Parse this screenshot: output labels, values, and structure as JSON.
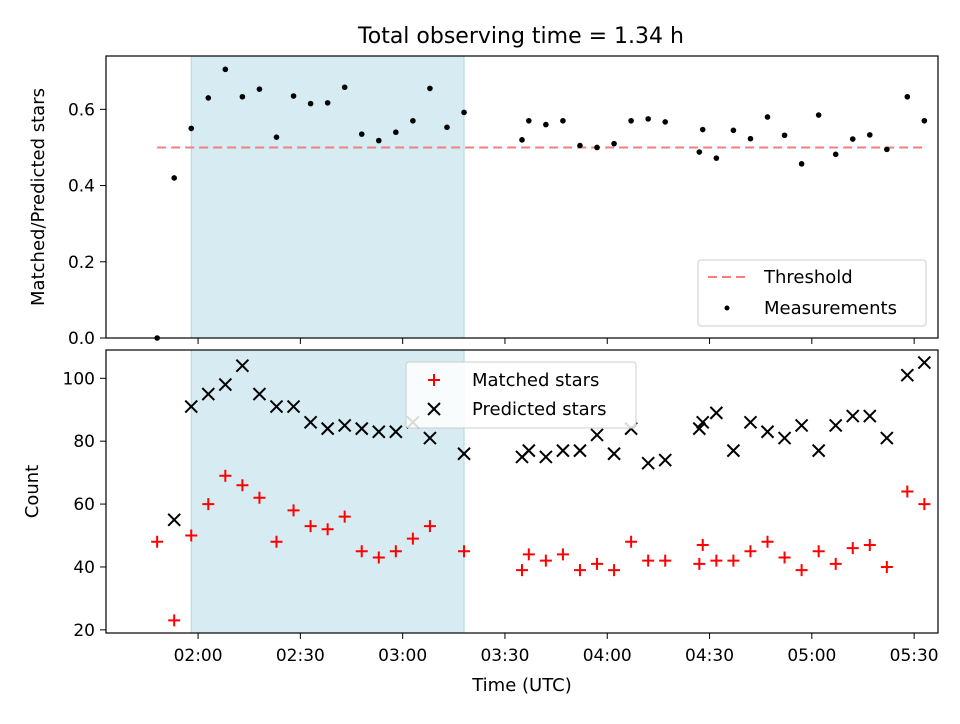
{
  "title": "Total observing time = 1.34 h",
  "colors": {
    "threshold": "#f08080",
    "measurement": "#000000",
    "matched": "#ff0000",
    "predicted": "#000000",
    "highlight": "#add8e6"
  },
  "chart_data": [
    {
      "type": "scatter",
      "ylabel": "Matched/Predicted stars",
      "ylim": [
        0,
        0.74
      ],
      "xlim": [
        "01:33",
        "05:37"
      ],
      "yticks": [
        "0.0",
        "0.2",
        "0.4",
        "0.6"
      ],
      "ytick_values": [
        0,
        0.2,
        0.4,
        0.6
      ],
      "highlight": {
        "x_start": "01:58",
        "x_end": "03:18"
      },
      "legend_position": "lower right",
      "threshold": {
        "name": "Threshold",
        "value": 0.5,
        "x_start": "01:48",
        "x_end": "05:33"
      },
      "series": [
        {
          "name": "Measurements",
          "x": [
            "01:48",
            "01:53",
            "01:58",
            "02:03",
            "02:08",
            "02:13",
            "02:18",
            "02:23",
            "02:28",
            "02:33",
            "02:38",
            "02:43",
            "02:48",
            "02:53",
            "02:58",
            "03:03",
            "03:08",
            "03:13",
            "03:18",
            "03:35",
            "03:37",
            "03:42",
            "03:47",
            "03:52",
            "03:57",
            "04:02",
            "04:07",
            "04:12",
            "04:17",
            "04:27",
            "04:28",
            "04:32",
            "04:37",
            "04:42",
            "04:47",
            "04:52",
            "04:57",
            "05:02",
            "05:07",
            "05:12",
            "05:17",
            "05:22",
            "05:28",
            "05:33"
          ],
          "y": [
            0.0,
            0.42,
            0.55,
            0.63,
            0.705,
            0.633,
            0.653,
            0.527,
            0.635,
            0.615,
            0.617,
            0.658,
            0.535,
            0.518,
            0.54,
            0.57,
            0.655,
            0.553,
            0.592,
            0.52,
            0.57,
            0.56,
            0.57,
            0.505,
            0.5,
            0.51,
            0.57,
            0.575,
            0.567,
            0.488,
            0.547,
            0.472,
            0.545,
            0.523,
            0.58,
            0.532,
            0.457,
            0.585,
            0.482,
            0.522,
            0.533,
            0.495,
            0.633,
            0.57
          ]
        }
      ]
    },
    {
      "type": "scatter",
      "xlabel": "Time (UTC)",
      "ylabel": "Count",
      "ylim": [
        19,
        109
      ],
      "xlim": [
        "01:33",
        "05:37"
      ],
      "yticks": [
        "20",
        "40",
        "60",
        "80",
        "100"
      ],
      "ytick_values": [
        20,
        40,
        60,
        80,
        100
      ],
      "xticks": [
        "02:00",
        "02:30",
        "03:00",
        "03:30",
        "04:00",
        "04:30",
        "05:00",
        "05:30"
      ],
      "highlight": {
        "x_start": "01:58",
        "x_end": "03:18"
      },
      "legend_position": "upper center",
      "series": [
        {
          "name": "Matched stars",
          "marker": "+",
          "x": [
            "01:48",
            "01:53",
            "01:58",
            "02:03",
            "02:08",
            "02:13",
            "02:18",
            "02:23",
            "02:28",
            "02:33",
            "02:38",
            "02:43",
            "02:48",
            "02:53",
            "02:58",
            "03:03",
            "03:08",
            "03:18",
            "03:35",
            "03:37",
            "03:42",
            "03:47",
            "03:52",
            "03:57",
            "04:02",
            "04:07",
            "04:12",
            "04:17",
            "04:27",
            "04:28",
            "04:32",
            "04:37",
            "04:42",
            "04:47",
            "04:52",
            "04:57",
            "05:02",
            "05:07",
            "05:12",
            "05:17",
            "05:22",
            "05:28",
            "05:33"
          ],
          "y": [
            48,
            23,
            50,
            60,
            69,
            66,
            62,
            48,
            58,
            53,
            52,
            56,
            45,
            43,
            45,
            49,
            53,
            45,
            39,
            44,
            42,
            44,
            39,
            41,
            39,
            48,
            42,
            42,
            41,
            47,
            42,
            42,
            45,
            48,
            43,
            39,
            45,
            41,
            46,
            47,
            40,
            64,
            60
          ]
        },
        {
          "name": "Predicted stars",
          "marker": "x",
          "x": [
            "01:53",
            "01:58",
            "02:03",
            "02:08",
            "02:13",
            "02:18",
            "02:23",
            "02:28",
            "02:33",
            "02:38",
            "02:43",
            "02:48",
            "02:53",
            "02:58",
            "03:03",
            "03:08",
            "03:18",
            "03:35",
            "03:37",
            "03:42",
            "03:47",
            "03:52",
            "03:57",
            "04:02",
            "04:07",
            "04:12",
            "04:17",
            "04:27",
            "04:28",
            "04:32",
            "04:37",
            "04:42",
            "04:47",
            "04:52",
            "04:57",
            "05:02",
            "05:07",
            "05:12",
            "05:17",
            "05:22",
            "05:28",
            "05:33"
          ],
          "y": [
            55,
            91,
            95,
            98,
            104,
            95,
            91,
            91,
            86,
            84,
            85,
            84,
            83,
            83,
            86,
            81,
            76,
            75,
            77,
            75,
            77,
            77,
            82,
            76,
            84,
            73,
            74,
            84,
            86,
            89,
            77,
            86,
            83,
            81,
            85,
            77,
            85,
            88,
            88,
            81,
            101,
            105
          ]
        }
      ]
    }
  ]
}
